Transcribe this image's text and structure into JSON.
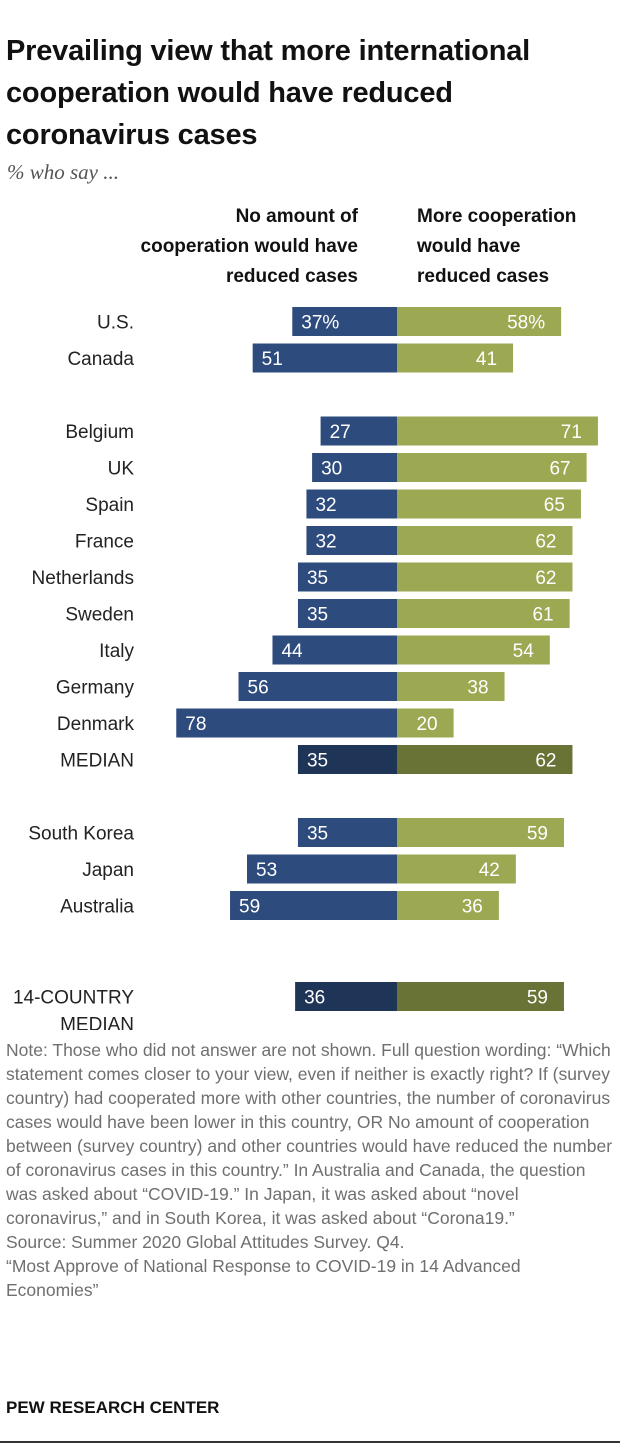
{
  "title": "Prevailing view that more international cooperation would have reduced coronavirus cases",
  "subtitle": "% who say ...",
  "column_headers": {
    "left": [
      "No amount of",
      "cooperation would have",
      "reduced cases"
    ],
    "right": [
      "More cooperation",
      "would have",
      "reduced cases"
    ]
  },
  "colors": {
    "left": "#2e4b7e",
    "right": "#9ca852",
    "median_left": "#1f3557",
    "median_right": "#6a7336",
    "bar_text": "#ffffff"
  },
  "chart_data": {
    "type": "bar",
    "orientation": "diverging-horizontal",
    "title": "Prevailing view that more international cooperation would have reduced coronavirus cases",
    "subtitle": "% who say ...",
    "series": [
      {
        "name": "No amount of cooperation would have reduced cases",
        "direction": "left"
      },
      {
        "name": "More cooperation would have reduced cases",
        "direction": "right"
      }
    ],
    "groups": [
      {
        "rows": [
          {
            "label": "U.S.",
            "left": 37,
            "right": 58,
            "left_label": "37%",
            "right_label": "58%"
          },
          {
            "label": "Canada",
            "left": 51,
            "right": 41,
            "left_label": "51",
            "right_label": "41"
          }
        ]
      },
      {
        "rows": [
          {
            "label": "Belgium",
            "left": 27,
            "right": 71,
            "left_label": "27",
            "right_label": "71"
          },
          {
            "label": "UK",
            "left": 30,
            "right": 67,
            "left_label": "30",
            "right_label": "67"
          },
          {
            "label": "Spain",
            "left": 32,
            "right": 65,
            "left_label": "32",
            "right_label": "65"
          },
          {
            "label": "France",
            "left": 32,
            "right": 62,
            "left_label": "32",
            "right_label": "62"
          },
          {
            "label": "Netherlands",
            "left": 35,
            "right": 62,
            "left_label": "35",
            "right_label": "62"
          },
          {
            "label": "Sweden",
            "left": 35,
            "right": 61,
            "left_label": "35",
            "right_label": "61"
          },
          {
            "label": "Italy",
            "left": 44,
            "right": 54,
            "left_label": "44",
            "right_label": "54"
          },
          {
            "label": "Germany",
            "left": 56,
            "right": 38,
            "left_label": "56",
            "right_label": "38"
          },
          {
            "label": "Denmark",
            "left": 78,
            "right": 20,
            "left_label": "78",
            "right_label": "20"
          },
          {
            "label": "MEDIAN",
            "left": 35,
            "right": 62,
            "left_label": "35",
            "right_label": "62",
            "median": true
          }
        ]
      },
      {
        "rows": [
          {
            "label": "South Korea",
            "left": 35,
            "right": 59,
            "left_label": "35",
            "right_label": "59"
          },
          {
            "label": "Japan",
            "left": 53,
            "right": 42,
            "left_label": "53",
            "right_label": "42"
          },
          {
            "label": "Australia",
            "left": 59,
            "right": 36,
            "left_label": "59",
            "right_label": "36"
          }
        ]
      },
      {
        "rows": [
          {
            "label": "14-COUNTRY MEDIAN",
            "label_lines": [
              "14-COUNTRY",
              "MEDIAN"
            ],
            "left": 36,
            "right": 59,
            "left_label": "36",
            "right_label": "59",
            "median": true
          }
        ]
      }
    ]
  },
  "notes": [
    "Note: Those who did not answer are not shown. Full question wording: “Which statement comes closer to your view, even if neither is exactly right? If (survey country) had cooperated more with other countries, the number of coronavirus cases would have been lower in this country, OR No amount of cooperation between (survey country) and other countries would have reduced the number of coronavirus cases in this country.” In Australia and Canada, the question was asked about “COVID-19.” In Japan, it was asked about “novel coronavirus,” and in South Korea, it was asked about “Corona19.”",
    "Source: Summer 2020 Global Attitudes Survey. Q4.",
    "“Most Approve of National Response to COVID-19 in 14 Advanced Economies”"
  ],
  "brand": "PEW RESEARCH CENTER"
}
